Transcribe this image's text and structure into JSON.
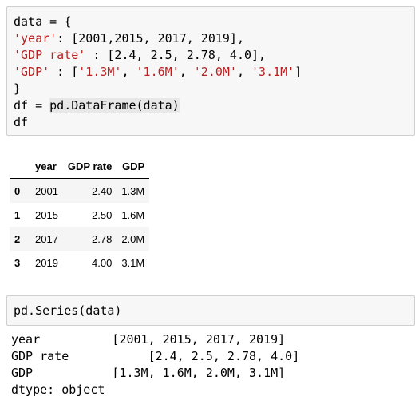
{
  "cell1": {
    "lines": [
      {
        "parts": [
          {
            "t": "data = {"
          }
        ]
      },
      {
        "parts": [
          {
            "t": "'year'",
            "s": "str"
          },
          {
            "t": ": [2001,2015, 2017, 2019],"
          }
        ]
      },
      {
        "parts": [
          {
            "t": "'GDP rate'",
            "s": "str"
          },
          {
            "t": " : [2.4, 2.5, 2.78, 4.0],"
          }
        ]
      },
      {
        "parts": [
          {
            "t": "'GDP'",
            "s": "str"
          },
          {
            "t": " : ["
          },
          {
            "t": "'1.3M'",
            "s": "str"
          },
          {
            "t": ", "
          },
          {
            "t": "'1.6M'",
            "s": "str"
          },
          {
            "t": ", "
          },
          {
            "t": "'2.0M'",
            "s": "str"
          },
          {
            "t": ", "
          },
          {
            "t": "'3.1M'",
            "s": "str"
          },
          {
            "t": "]"
          }
        ]
      },
      {
        "parts": [
          {
            "t": "}"
          }
        ]
      },
      {
        "parts": [
          {
            "t": "df = "
          },
          {
            "t": "pd.DataFrame(data)",
            "s": "hl"
          }
        ]
      },
      {
        "parts": [
          {
            "t": "df"
          }
        ]
      }
    ]
  },
  "table": {
    "index_header": "",
    "columns": [
      "year",
      "GDP rate",
      "GDP"
    ],
    "rows": [
      {
        "index": "0",
        "year": "2001",
        "rate": "2.40",
        "gdp": "1.3M"
      },
      {
        "index": "1",
        "year": "2015",
        "rate": "2.50",
        "gdp": "1.6M"
      },
      {
        "index": "2",
        "year": "2017",
        "rate": "2.78",
        "gdp": "2.0M"
      },
      {
        "index": "3",
        "year": "2019",
        "rate": "4.00",
        "gdp": "3.1M"
      }
    ]
  },
  "cell2": {
    "code": "pd.Series(data)"
  },
  "series_output": {
    "lines": [
      "year          [2001, 2015, 2017, 2019]",
      "GDP rate           [2.4, 2.5, 2.78, 4.0]",
      "GDP           [1.3M, 1.6M, 2.0M, 3.1M]",
      "dtype: object"
    ]
  }
}
